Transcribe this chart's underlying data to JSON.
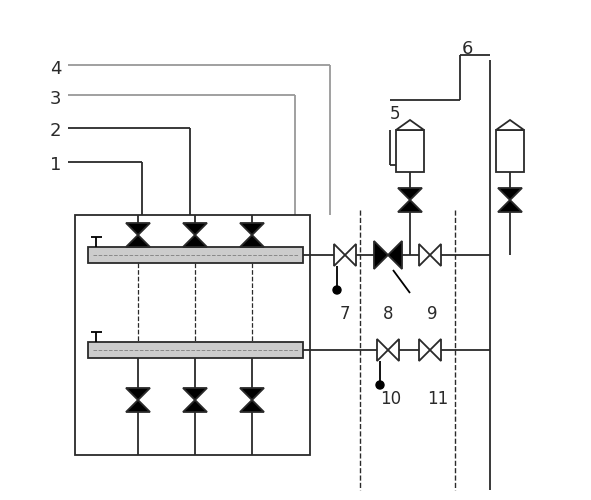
{
  "bg_color": "#ffffff",
  "line_color": "#2a2a2a",
  "dark_color": "#000000",
  "gray_color": "#999999",
  "lw": 1.3
}
